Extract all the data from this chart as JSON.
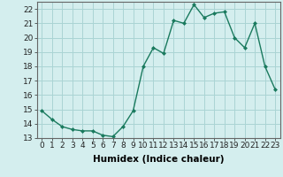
{
  "x": [
    0,
    1,
    2,
    3,
    4,
    5,
    6,
    7,
    8,
    9,
    10,
    11,
    12,
    13,
    14,
    15,
    16,
    17,
    18,
    19,
    20,
    21,
    22,
    23
  ],
  "y": [
    14.9,
    14.3,
    13.8,
    13.6,
    13.5,
    13.5,
    13.2,
    13.1,
    13.8,
    14.9,
    18.0,
    19.3,
    18.9,
    21.2,
    21.0,
    22.3,
    21.4,
    21.7,
    21.8,
    20.0,
    19.3,
    21.0,
    18.0,
    16.4
  ],
  "line_color": "#1a7a5e",
  "marker": "D",
  "marker_size": 2.0,
  "bg_color": "#d4eeee",
  "grid_color": "#aad4d4",
  "xlabel": "Humidex (Indice chaleur)",
  "xlim": [
    -0.5,
    23.5
  ],
  "ylim": [
    13.0,
    22.5
  ],
  "yticks": [
    13,
    14,
    15,
    16,
    17,
    18,
    19,
    20,
    21,
    22
  ],
  "xticks": [
    0,
    1,
    2,
    3,
    4,
    5,
    6,
    7,
    8,
    9,
    10,
    11,
    12,
    13,
    14,
    15,
    16,
    17,
    18,
    19,
    20,
    21,
    22,
    23
  ],
  "xlabel_fontsize": 7.5,
  "tick_fontsize": 6.5,
  "linewidth": 1.0
}
